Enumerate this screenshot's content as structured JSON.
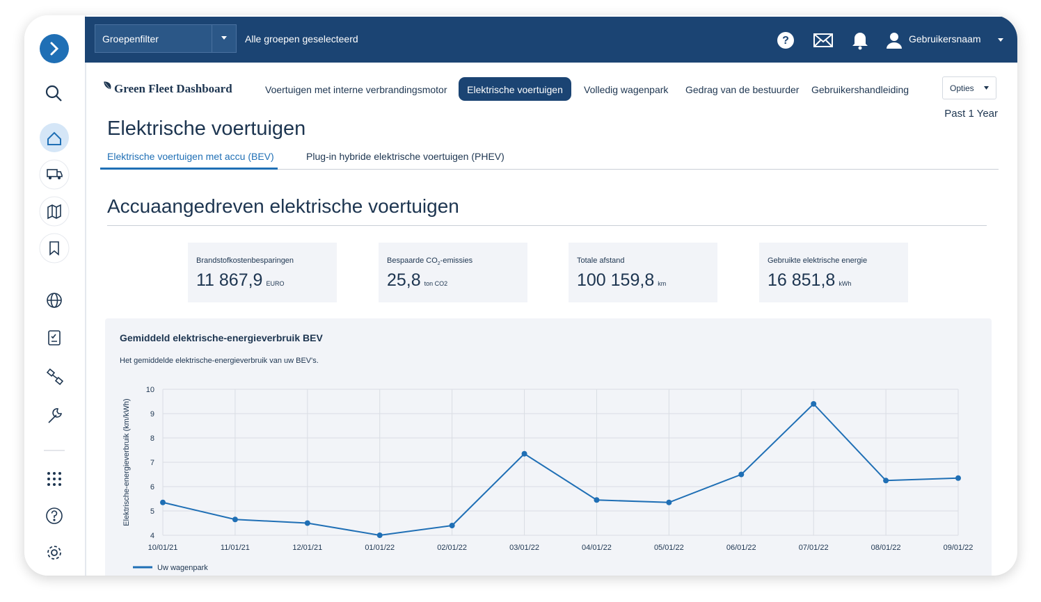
{
  "topbar": {
    "group_filter": "Groepenfilter",
    "group_status": "Alle groepen geselecteerd",
    "username": "Gebruikersnaam"
  },
  "header": {
    "logo": "Green Fleet Dashboard",
    "nav": [
      "Voertuigen met interne verbrandingsmotor",
      "Elektrische voertuigen",
      "Volledig wagenpark",
      "Gedrag van de bestuurder",
      "Gebruikershandleiding"
    ],
    "options": "Opties",
    "period": "Past 1 Year"
  },
  "page": {
    "title": "Elektrische voertuigen",
    "tabs": [
      "Elektrische voertuigen met accu (BEV)",
      "Plug-in hybride elektrische voertuigen (PHEV)"
    ],
    "section_title": "Accuaangedreven elektrische voertuigen"
  },
  "kpis": [
    {
      "label": "Brandstofkostenbesparingen",
      "value": "11 867,9",
      "unit": "EURO"
    },
    {
      "label": "Bespaarde CO",
      "label_sub": "2",
      "label_after": "-emissies",
      "value": "25,8",
      "unit": "ton CO2"
    },
    {
      "label": "Totale afstand",
      "value": "100 159,8",
      "unit": "km"
    },
    {
      "label": "Gebruikte elektrische energie",
      "value": "16 851,8",
      "unit": "kWh"
    }
  ],
  "chart_data": {
    "type": "line",
    "title": "Gemiddeld elektrische-energieverbruik BEV",
    "subtitle": "Het gemiddelde elektrische-energieverbruik van uw BEV's.",
    "y_label": "Elektrische-energieverbruik (km/kWh)",
    "categories": [
      "10/01/21",
      "11/01/21",
      "12/01/21",
      "01/01/22",
      "02/01/22",
      "03/01/22",
      "04/01/22",
      "05/01/22",
      "06/01/22",
      "07/01/22",
      "08/01/22",
      "09/01/22"
    ],
    "series": [
      {
        "name": "Uw wagenpark",
        "color": "#1f6fb5",
        "values": [
          5.35,
          4.65,
          4.5,
          4.0,
          4.4,
          7.35,
          5.45,
          5.35,
          6.5,
          9.4,
          6.25,
          6.35
        ]
      }
    ],
    "ylim": [
      4,
      10
    ],
    "yticks": [
      4,
      5,
      6,
      7,
      8,
      9,
      10
    ],
    "grid": true
  }
}
